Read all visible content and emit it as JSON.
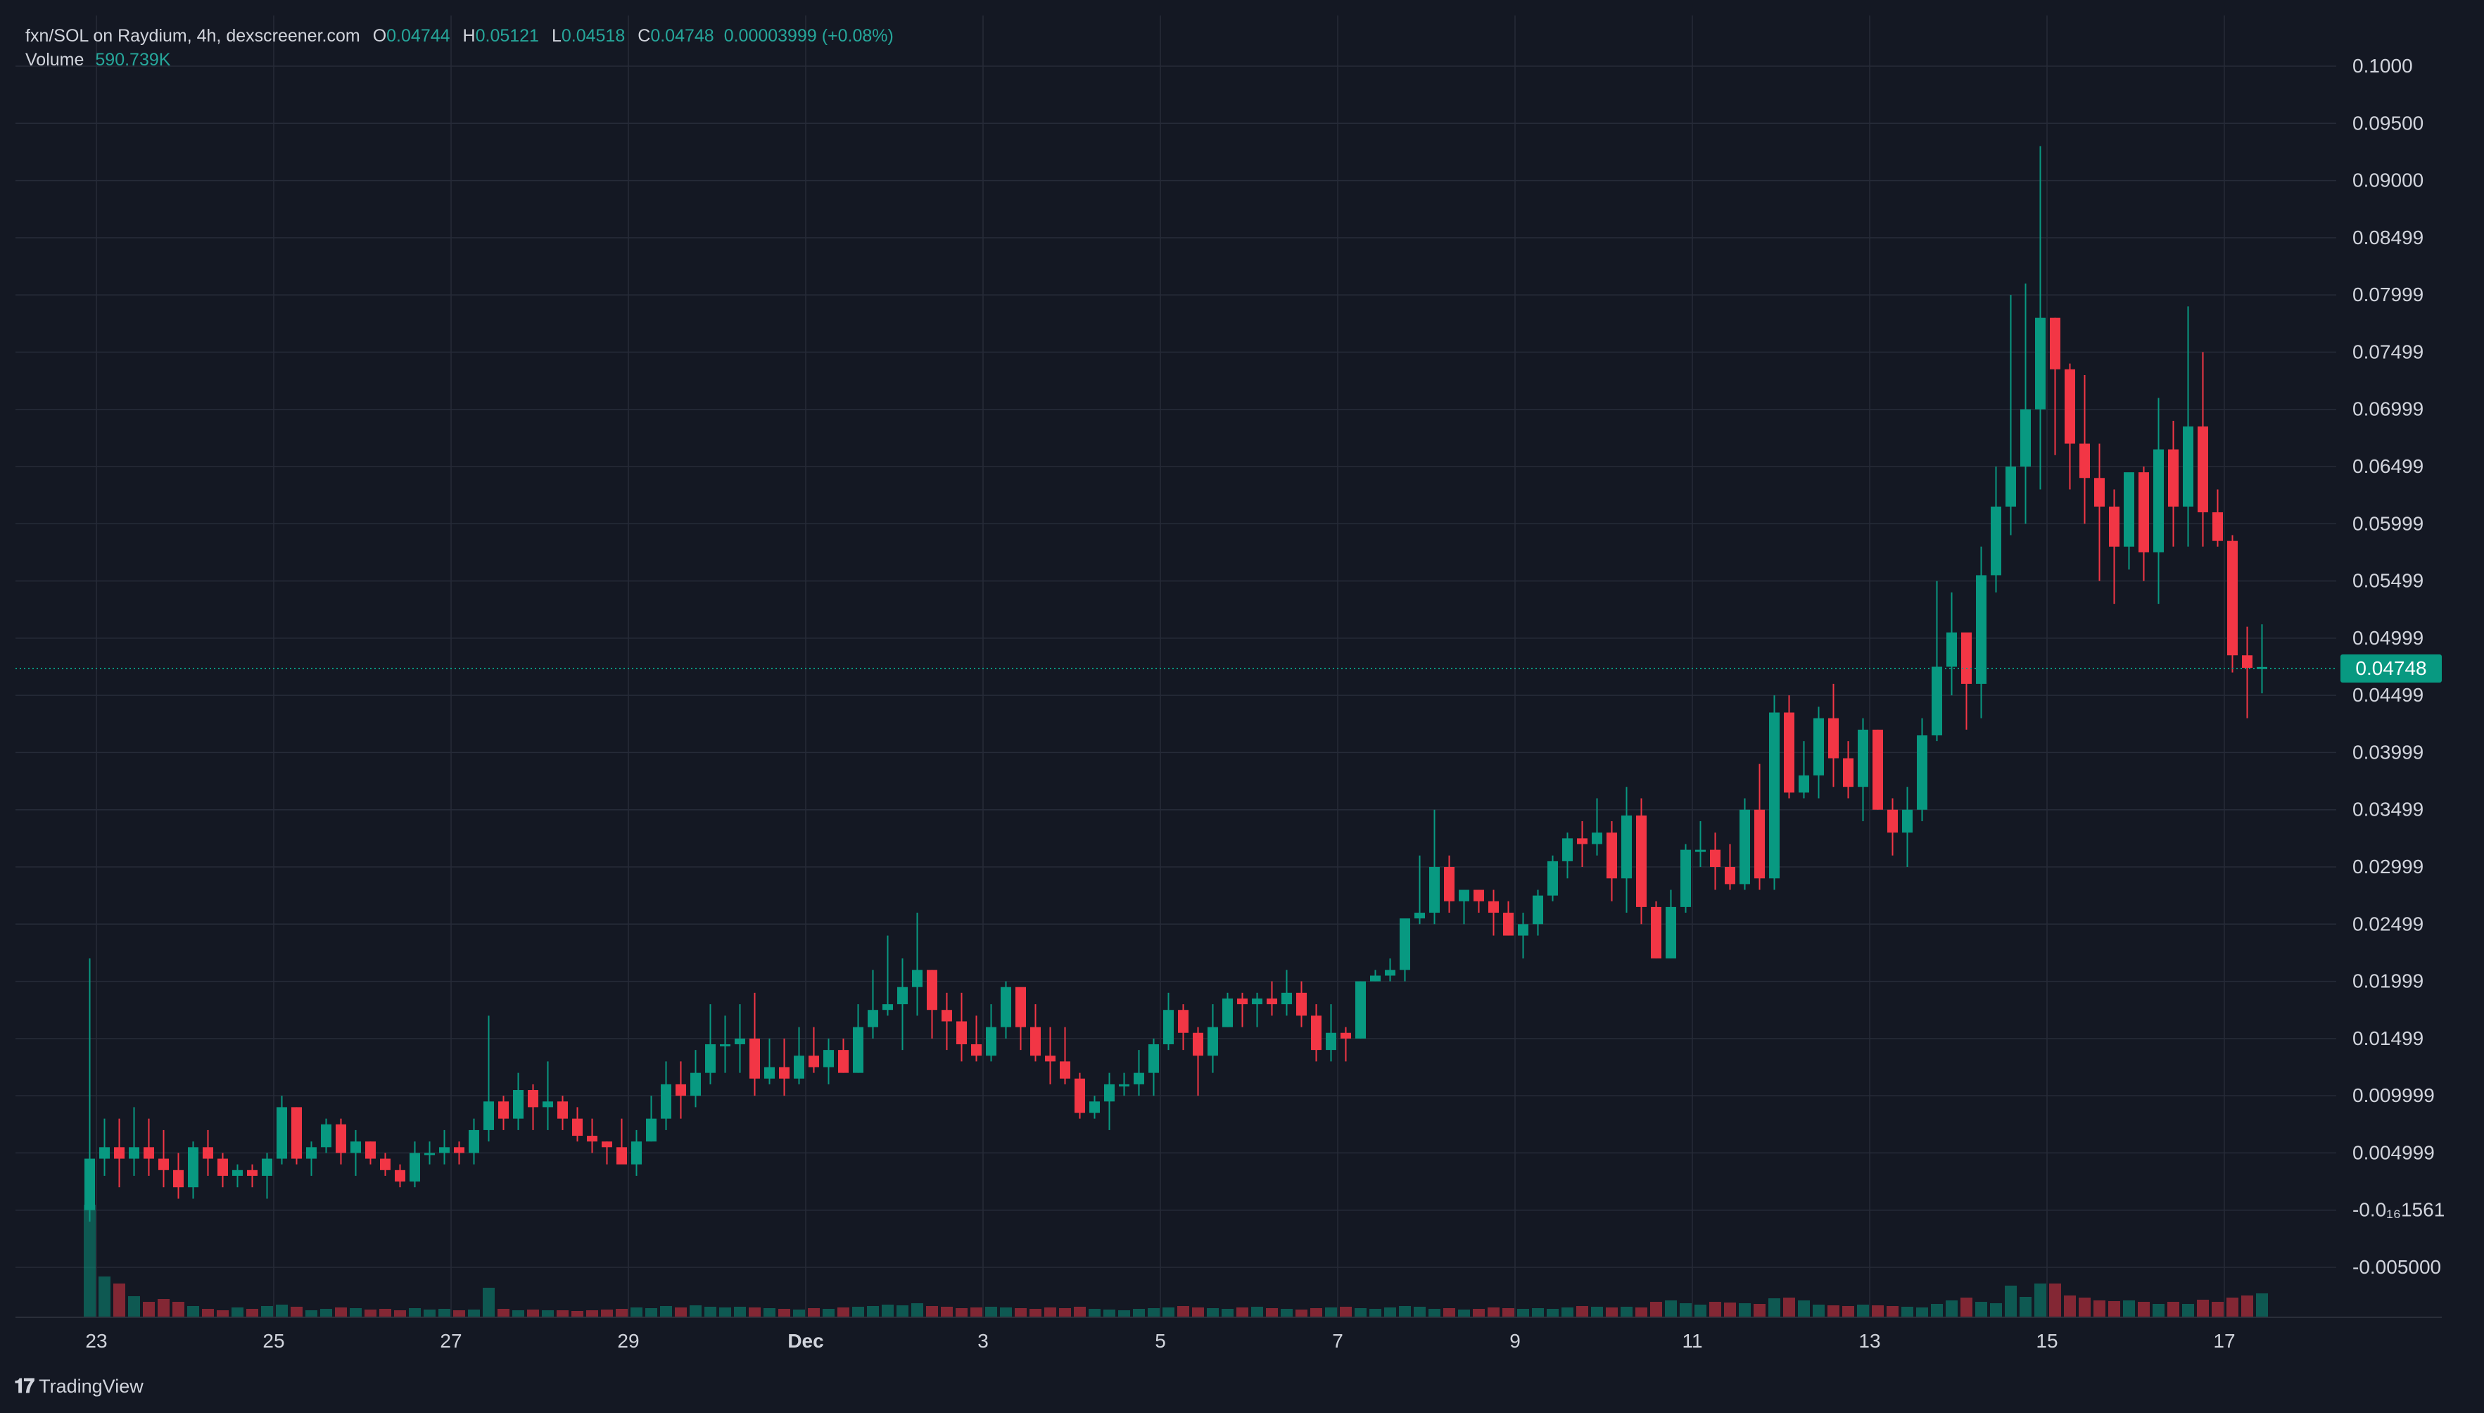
{
  "legend": {
    "symbol": "fxn/SOL on Raydium, 4h, dexscreener.com",
    "o_label": "O",
    "o": "0.04744",
    "h_label": "H",
    "h": "0.05121",
    "l_label": "L",
    "l": "0.04518",
    "c_label": "C",
    "c": "0.04748",
    "change": "0.00003999 (+0.08%)",
    "volume_label": "Volume",
    "volume": "590.739K"
  },
  "last_price_label": "0.04748",
  "footer": {
    "brand": "TradingView"
  },
  "colors": {
    "up": "#089981",
    "down": "#f23645",
    "background": "#141823",
    "grid": "#262b38",
    "text": "#d1d4dc"
  },
  "chart_data": {
    "type": "candlestick",
    "title": "fxn/SOL on Raydium, 4h, dexscreener.com",
    "y_ticks": [
      "0.1000",
      "0.09500",
      "0.09000",
      "0.08499",
      "0.07999",
      "0.07499",
      "0.06999",
      "0.06499",
      "0.05999",
      "0.05499",
      "0.04999",
      "0.04499",
      "0.03999",
      "0.03499",
      "0.02999",
      "0.02499",
      "0.01999",
      "0.01499",
      "0.009999",
      "0.004999",
      "-0.0₁₆1561",
      "-0.005000"
    ],
    "y_tick_values": [
      0.1,
      0.095,
      0.09,
      0.085,
      0.08,
      0.075,
      0.07,
      0.065,
      0.06,
      0.055,
      0.05,
      0.045,
      0.04,
      0.035,
      0.03,
      0.025,
      0.02,
      0.015,
      0.01,
      0.005,
      0.0,
      -0.005
    ],
    "ylim": [
      -0.0055,
      0.1015
    ],
    "x_ticks": [
      "23",
      "25",
      "27",
      "29",
      "Dec",
      "3",
      "5",
      "7",
      "9",
      "11",
      "13",
      "15",
      "17"
    ],
    "x_tick_positions": [
      0,
      12,
      24,
      36,
      48,
      60,
      72,
      84,
      96,
      108,
      120,
      132,
      144
    ],
    "last_price": 0.04748,
    "grid": true,
    "candles": [
      [
        0.0,
        0.0,
        0.022,
        -0.001,
        0.0045
      ],
      [
        0.0045,
        0.008,
        0.003,
        0.0055
      ],
      [
        0.0055,
        0.008,
        0.002,
        0.0045
      ],
      [
        0.0045,
        0.009,
        0.003,
        0.0055
      ],
      [
        0.0055,
        0.008,
        0.003,
        0.0045
      ],
      [
        0.0045,
        0.007,
        0.002,
        0.0035
      ],
      [
        0.0035,
        0.005,
        0.001,
        0.002
      ],
      [
        0.002,
        0.006,
        0.001,
        0.0055
      ],
      [
        0.0055,
        0.007,
        0.003,
        0.0045
      ],
      [
        0.0045,
        0.005,
        0.002,
        0.003
      ],
      [
        0.003,
        0.004,
        0.002,
        0.0035
      ],
      [
        0.0035,
        0.004,
        0.002,
        0.003
      ],
      [
        0.003,
        0.005,
        0.001,
        0.0045
      ],
      [
        0.0045,
        0.01,
        0.004,
        0.009
      ],
      [
        0.009,
        0.009,
        0.004,
        0.0045
      ],
      [
        0.0045,
        0.006,
        0.003,
        0.0055
      ],
      [
        0.0055,
        0.008,
        0.005,
        0.0075
      ],
      [
        0.0075,
        0.008,
        0.004,
        0.005
      ],
      [
        0.005,
        0.007,
        0.003,
        0.006
      ],
      [
        0.006,
        0.006,
        0.004,
        0.0045
      ],
      [
        0.0045,
        0.005,
        0.003,
        0.0035
      ],
      [
        0.0035,
        0.004,
        0.002,
        0.0025
      ],
      [
        0.0025,
        0.006,
        0.002,
        0.005
      ],
      [
        0.005,
        0.006,
        0.004,
        0.005
      ],
      [
        0.005,
        0.007,
        0.004,
        0.0055
      ],
      [
        0.0055,
        0.006,
        0.004,
        0.005
      ],
      [
        0.005,
        0.008,
        0.004,
        0.007
      ],
      [
        0.007,
        0.017,
        0.006,
        0.0095
      ],
      [
        0.0095,
        0.01,
        0.007,
        0.008
      ],
      [
        0.008,
        0.012,
        0.007,
        0.0105
      ],
      [
        0.0105,
        0.011,
        0.007,
        0.009
      ],
      [
        0.009,
        0.013,
        0.007,
        0.0095
      ],
      [
        0.0095,
        0.01,
        0.007,
        0.008
      ],
      [
        0.008,
        0.009,
        0.006,
        0.0065
      ],
      [
        0.0065,
        0.008,
        0.005,
        0.006
      ],
      [
        0.006,
        0.006,
        0.004,
        0.0055
      ],
      [
        0.0055,
        0.008,
        0.005,
        0.004
      ],
      [
        0.004,
        0.007,
        0.003,
        0.006
      ],
      [
        0.006,
        0.01,
        0.006,
        0.008
      ],
      [
        0.008,
        0.013,
        0.007,
        0.011
      ],
      [
        0.011,
        0.013,
        0.008,
        0.01
      ],
      [
        0.01,
        0.014,
        0.009,
        0.012
      ],
      [
        0.012,
        0.018,
        0.011,
        0.0145
      ],
      [
        0.0145,
        0.017,
        0.012,
        0.0145
      ],
      [
        0.0145,
        0.018,
        0.012,
        0.015
      ],
      [
        0.015,
        0.019,
        0.01,
        0.0115
      ],
      [
        0.0115,
        0.015,
        0.011,
        0.0125
      ],
      [
        0.0125,
        0.015,
        0.01,
        0.0115
      ],
      [
        0.0115,
        0.016,
        0.011,
        0.0135
      ],
      [
        0.0135,
        0.016,
        0.012,
        0.0125
      ],
      [
        0.0125,
        0.015,
        0.011,
        0.014
      ],
      [
        0.014,
        0.015,
        0.012,
        0.012
      ],
      [
        0.012,
        0.018,
        0.012,
        0.016
      ],
      [
        0.016,
        0.021,
        0.015,
        0.0175
      ],
      [
        0.0175,
        0.024,
        0.017,
        0.018
      ],
      [
        0.018,
        0.022,
        0.014,
        0.0195
      ],
      [
        0.0195,
        0.026,
        0.017,
        0.021
      ],
      [
        0.021,
        0.021,
        0.015,
        0.0175
      ],
      [
        0.0175,
        0.019,
        0.014,
        0.0165
      ],
      [
        0.0165,
        0.019,
        0.013,
        0.0145
      ],
      [
        0.0145,
        0.017,
        0.013,
        0.0135
      ],
      [
        0.0135,
        0.018,
        0.013,
        0.016
      ],
      [
        0.016,
        0.02,
        0.015,
        0.0195
      ],
      [
        0.0195,
        0.019,
        0.014,
        0.016
      ],
      [
        0.016,
        0.018,
        0.013,
        0.0135
      ],
      [
        0.0135,
        0.016,
        0.011,
        0.013
      ],
      [
        0.013,
        0.016,
        0.011,
        0.0115
      ],
      [
        0.0115,
        0.012,
        0.008,
        0.0085
      ],
      [
        0.0085,
        0.01,
        0.008,
        0.0095
      ],
      [
        0.0095,
        0.012,
        0.007,
        0.011
      ],
      [
        0.011,
        0.012,
        0.01,
        0.011
      ],
      [
        0.011,
        0.014,
        0.01,
        0.012
      ],
      [
        0.012,
        0.015,
        0.01,
        0.0145
      ],
      [
        0.0145,
        0.019,
        0.014,
        0.0175
      ],
      [
        0.0175,
        0.018,
        0.014,
        0.0155
      ],
      [
        0.0155,
        0.016,
        0.01,
        0.0135
      ],
      [
        0.0135,
        0.018,
        0.012,
        0.016
      ],
      [
        0.016,
        0.019,
        0.016,
        0.0185
      ],
      [
        0.0185,
        0.019,
        0.016,
        0.018
      ],
      [
        0.018,
        0.019,
        0.016,
        0.0185
      ],
      [
        0.0185,
        0.02,
        0.017,
        0.018
      ],
      [
        0.018,
        0.021,
        0.017,
        0.019
      ],
      [
        0.019,
        0.02,
        0.016,
        0.017
      ],
      [
        0.017,
        0.018,
        0.013,
        0.014
      ],
      [
        0.014,
        0.018,
        0.013,
        0.0155
      ],
      [
        0.0155,
        0.016,
        0.013,
        0.015
      ],
      [
        0.015,
        0.02,
        0.015,
        0.02
      ],
      [
        0.02,
        0.021,
        0.02,
        0.0205
      ],
      [
        0.0205,
        0.022,
        0.02,
        0.021
      ],
      [
        0.021,
        0.025,
        0.02,
        0.0255
      ],
      [
        0.0255,
        0.031,
        0.025,
        0.026
      ],
      [
        0.026,
        0.035,
        0.025,
        0.03
      ],
      [
        0.03,
        0.031,
        0.026,
        0.027
      ],
      [
        0.027,
        0.028,
        0.025,
        0.028
      ],
      [
        0.028,
        0.028,
        0.026,
        0.027
      ],
      [
        0.027,
        0.028,
        0.024,
        0.026
      ],
      [
        0.026,
        0.027,
        0.024,
        0.024
      ],
      [
        0.024,
        0.026,
        0.022,
        0.025
      ],
      [
        0.025,
        0.028,
        0.024,
        0.0275
      ],
      [
        0.0275,
        0.031,
        0.027,
        0.0305
      ],
      [
        0.0305,
        0.033,
        0.029,
        0.0325
      ],
      [
        0.0325,
        0.034,
        0.03,
        0.032
      ],
      [
        0.032,
        0.036,
        0.031,
        0.033
      ],
      [
        0.033,
        0.034,
        0.027,
        0.029
      ],
      [
        0.029,
        0.037,
        0.026,
        0.0345
      ],
      [
        0.0345,
        0.036,
        0.025,
        0.0265
      ],
      [
        0.0265,
        0.027,
        0.022,
        0.022
      ],
      [
        0.022,
        0.028,
        0.022,
        0.0265
      ],
      [
        0.0265,
        0.032,
        0.026,
        0.0315
      ],
      [
        0.0315,
        0.034,
        0.03,
        0.0315
      ],
      [
        0.0315,
        0.033,
        0.028,
        0.03
      ],
      [
        0.03,
        0.032,
        0.028,
        0.0285
      ],
      [
        0.0285,
        0.036,
        0.028,
        0.035
      ],
      [
        0.035,
        0.039,
        0.028,
        0.029
      ],
      [
        0.029,
        0.045,
        0.028,
        0.0435
      ],
      [
        0.0435,
        0.045,
        0.036,
        0.0365
      ],
      [
        0.0365,
        0.041,
        0.036,
        0.038
      ],
      [
        0.038,
        0.044,
        0.036,
        0.043
      ],
      [
        0.043,
        0.046,
        0.037,
        0.0395
      ],
      [
        0.0395,
        0.041,
        0.036,
        0.037
      ],
      [
        0.037,
        0.043,
        0.034,
        0.042
      ],
      [
        0.042,
        0.042,
        0.035,
        0.035
      ],
      [
        0.035,
        0.036,
        0.031,
        0.033
      ],
      [
        0.033,
        0.037,
        0.03,
        0.035
      ],
      [
        0.035,
        0.043,
        0.034,
        0.0415
      ],
      [
        0.0415,
        0.055,
        0.041,
        0.0475
      ],
      [
        0.0475,
        0.054,
        0.045,
        0.0505
      ],
      [
        0.0505,
        0.05,
        0.042,
        0.046
      ],
      [
        0.046,
        0.058,
        0.043,
        0.0555
      ],
      [
        0.0555,
        0.065,
        0.054,
        0.0615
      ],
      [
        0.0615,
        0.08,
        0.059,
        0.065
      ],
      [
        0.065,
        0.081,
        0.06,
        0.07
      ],
      [
        0.07,
        0.093,
        0.063,
        0.078
      ],
      [
        0.078,
        0.078,
        0.066,
        0.0735
      ],
      [
        0.0735,
        0.074,
        0.063,
        0.067
      ],
      [
        0.067,
        0.073,
        0.06,
        0.064
      ],
      [
        0.064,
        0.067,
        0.055,
        0.0615
      ],
      [
        0.0615,
        0.063,
        0.053,
        0.058
      ],
      [
        0.058,
        0.064,
        0.056,
        0.0645
      ],
      [
        0.0645,
        0.065,
        0.055,
        0.0575
      ],
      [
        0.0575,
        0.071,
        0.053,
        0.0665
      ],
      [
        0.0665,
        0.069,
        0.058,
        0.0615
      ],
      [
        0.0615,
        0.079,
        0.058,
        0.0685
      ],
      [
        0.0685,
        0.075,
        0.058,
        0.061
      ],
      [
        0.061,
        0.063,
        0.058,
        0.0585
      ],
      [
        0.0585,
        0.059,
        0.047,
        0.0485
      ],
      [
        0.0485,
        0.051,
        0.043,
        0.0474
      ],
      [
        0.04744,
        0.05121,
        0.04518,
        0.04748
      ]
    ],
    "volume": [
      160,
      58,
      48,
      30,
      22,
      26,
      22,
      16,
      12,
      10,
      14,
      12,
      16,
      18,
      15,
      10,
      12,
      14,
      13,
      11,
      12,
      10,
      13,
      11,
      12,
      10,
      11,
      42,
      12,
      10,
      11,
      10,
      10,
      9,
      10,
      11,
      12,
      14,
      13,
      16,
      14,
      17,
      15,
      14,
      15,
      14,
      13,
      12,
      11,
      13,
      12,
      14,
      15,
      16,
      18,
      17,
      20,
      16,
      15,
      13,
      14,
      15,
      14,
      13,
      12,
      14,
      13,
      15,
      12,
      11,
      10,
      12,
      13,
      14,
      16,
      14,
      13,
      12,
      14,
      15,
      13,
      12,
      11,
      13,
      14,
      15,
      13,
      12,
      14,
      16,
      15,
      12,
      13,
      11,
      12,
      14,
      13,
      12,
      13,
      12,
      14,
      16,
      15,
      14,
      15,
      14,
      22,
      24,
      20,
      18,
      22,
      21,
      20,
      19,
      27,
      28,
      24,
      18,
      17,
      16,
      18,
      17,
      16,
      15,
      14,
      19,
      24,
      28,
      22,
      20,
      45,
      29,
      48,
      48,
      31,
      28,
      24,
      23,
      24,
      22,
      19,
      22,
      19,
      25,
      22,
      28,
      31,
      34,
      21
    ]
  }
}
